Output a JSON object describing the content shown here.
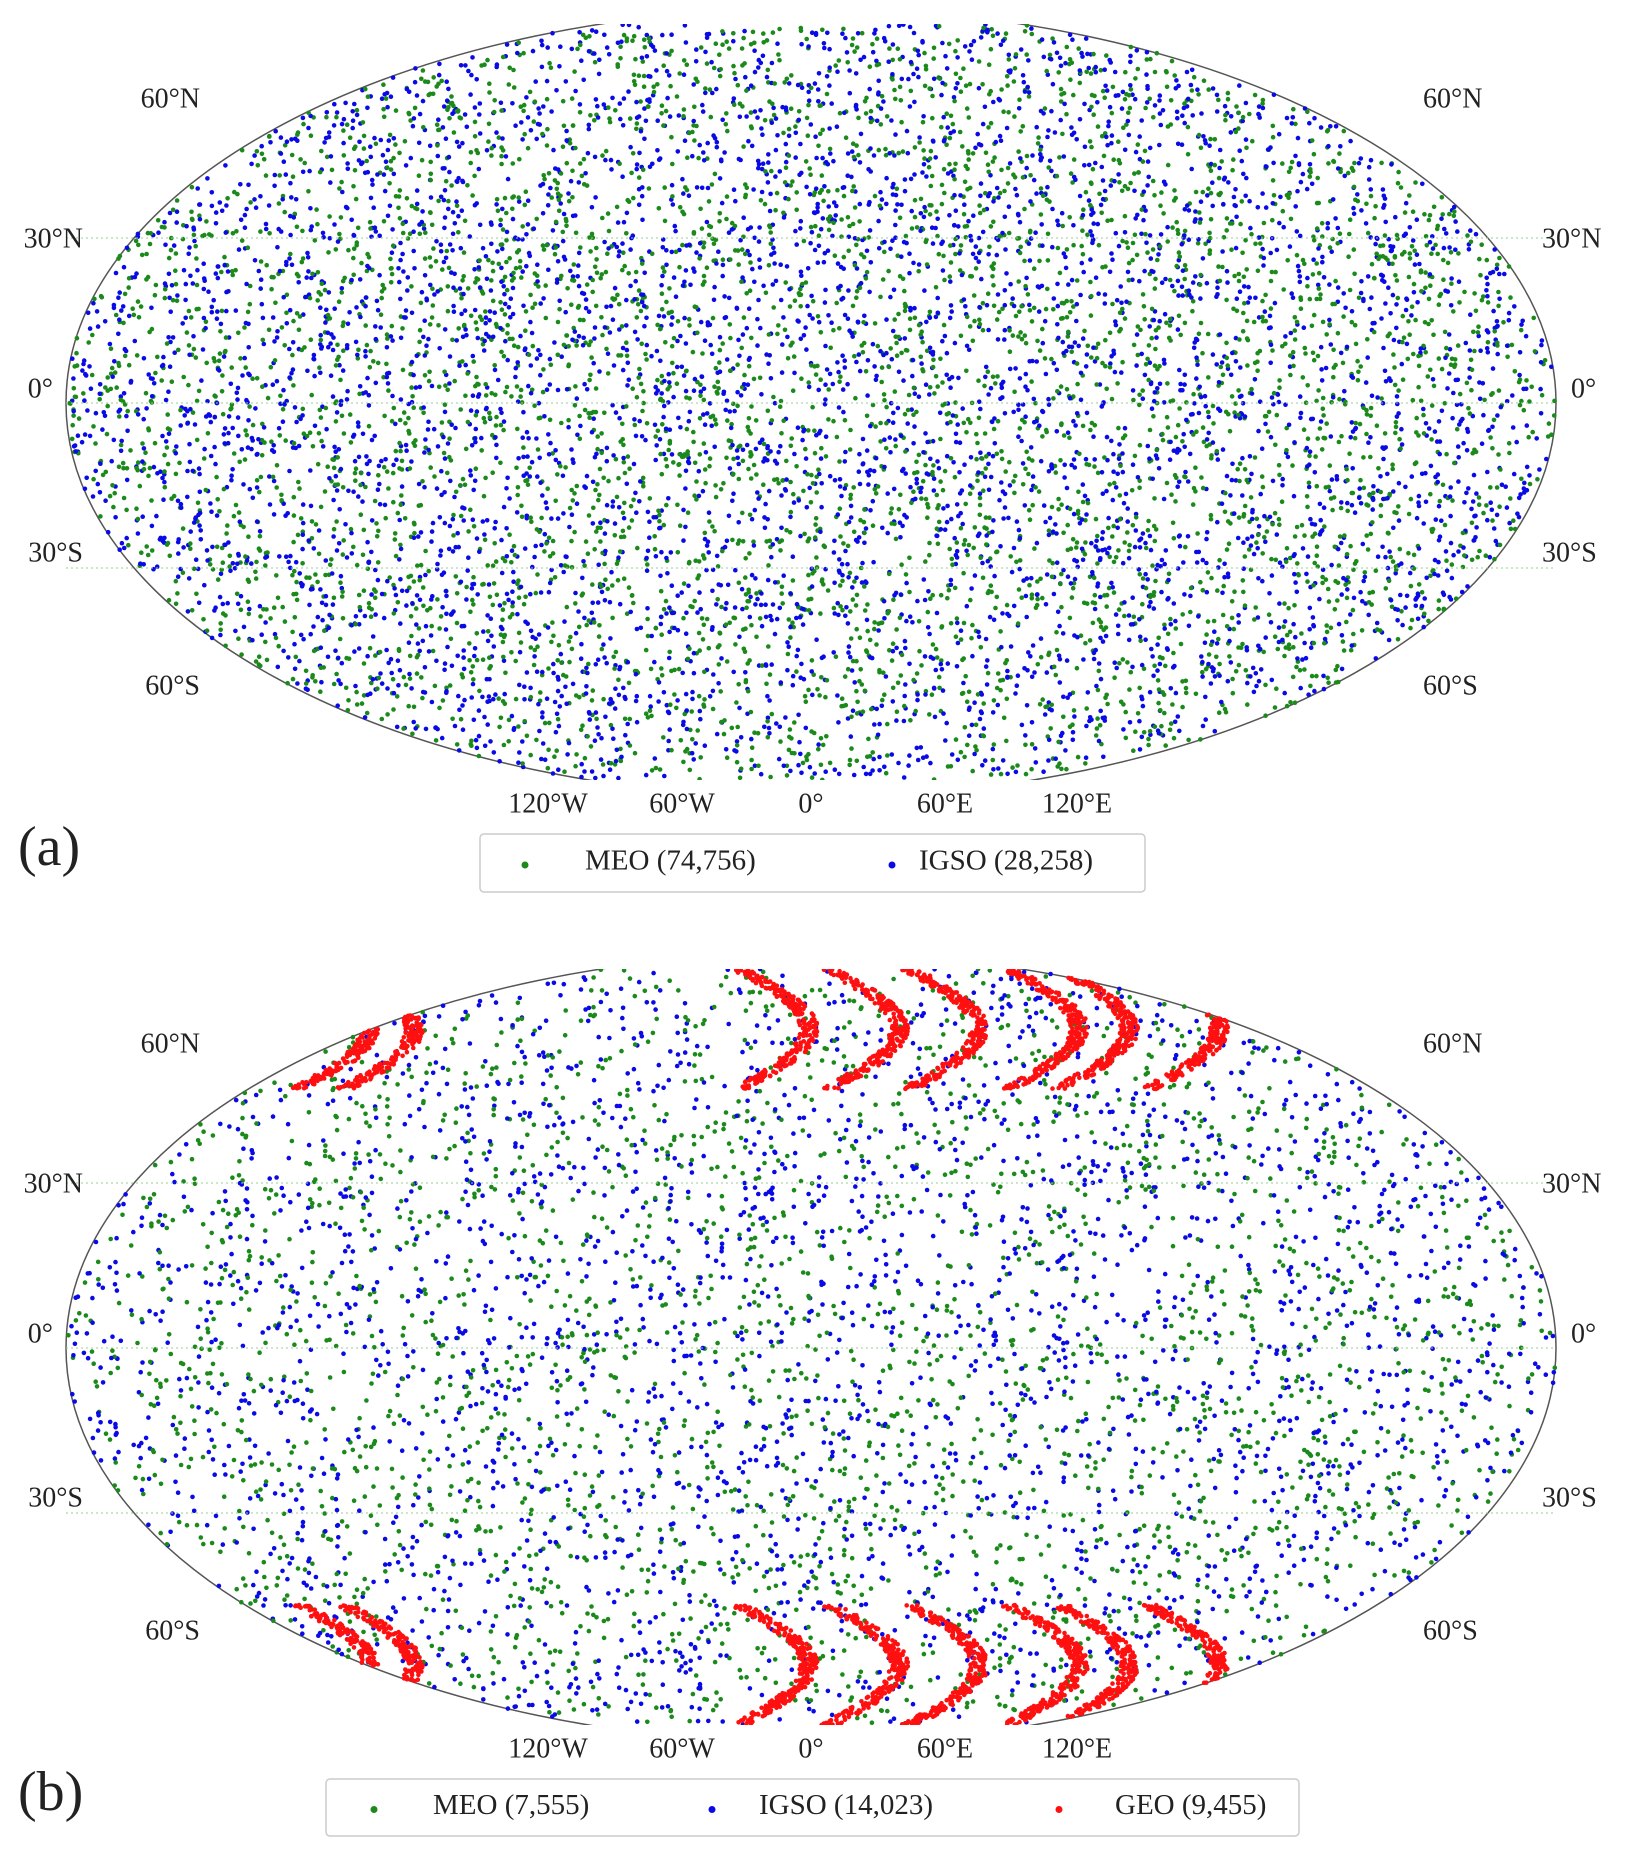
{
  "panels": [
    {
      "label": "(a)",
      "lat_labels": [
        "60°N",
        "30°N",
        "0°",
        "30°S",
        "60°S"
      ],
      "lon_labels": [
        "120°W",
        "60°W",
        "0°",
        "60°E",
        "120°E"
      ],
      "legend": [
        {
          "text": "MEO (74,756)",
          "color": "#1b8a1b"
        },
        {
          "text": "IGSO (28,258)",
          "color": "#0a0ae6"
        }
      ]
    },
    {
      "label": "(b)",
      "lat_labels": [
        "60°N",
        "30°N",
        "0°",
        "30°S",
        "60°S"
      ],
      "lon_labels": [
        "120°W",
        "60°W",
        "0°",
        "60°E",
        "120°E"
      ],
      "legend": [
        {
          "text": "MEO (7,555)",
          "color": "#1b8a1b"
        },
        {
          "text": "IGSO (14,023)",
          "color": "#0a0ae6"
        },
        {
          "text": "GEO (9,455)",
          "color": "#ff1010"
        }
      ]
    }
  ]
}
